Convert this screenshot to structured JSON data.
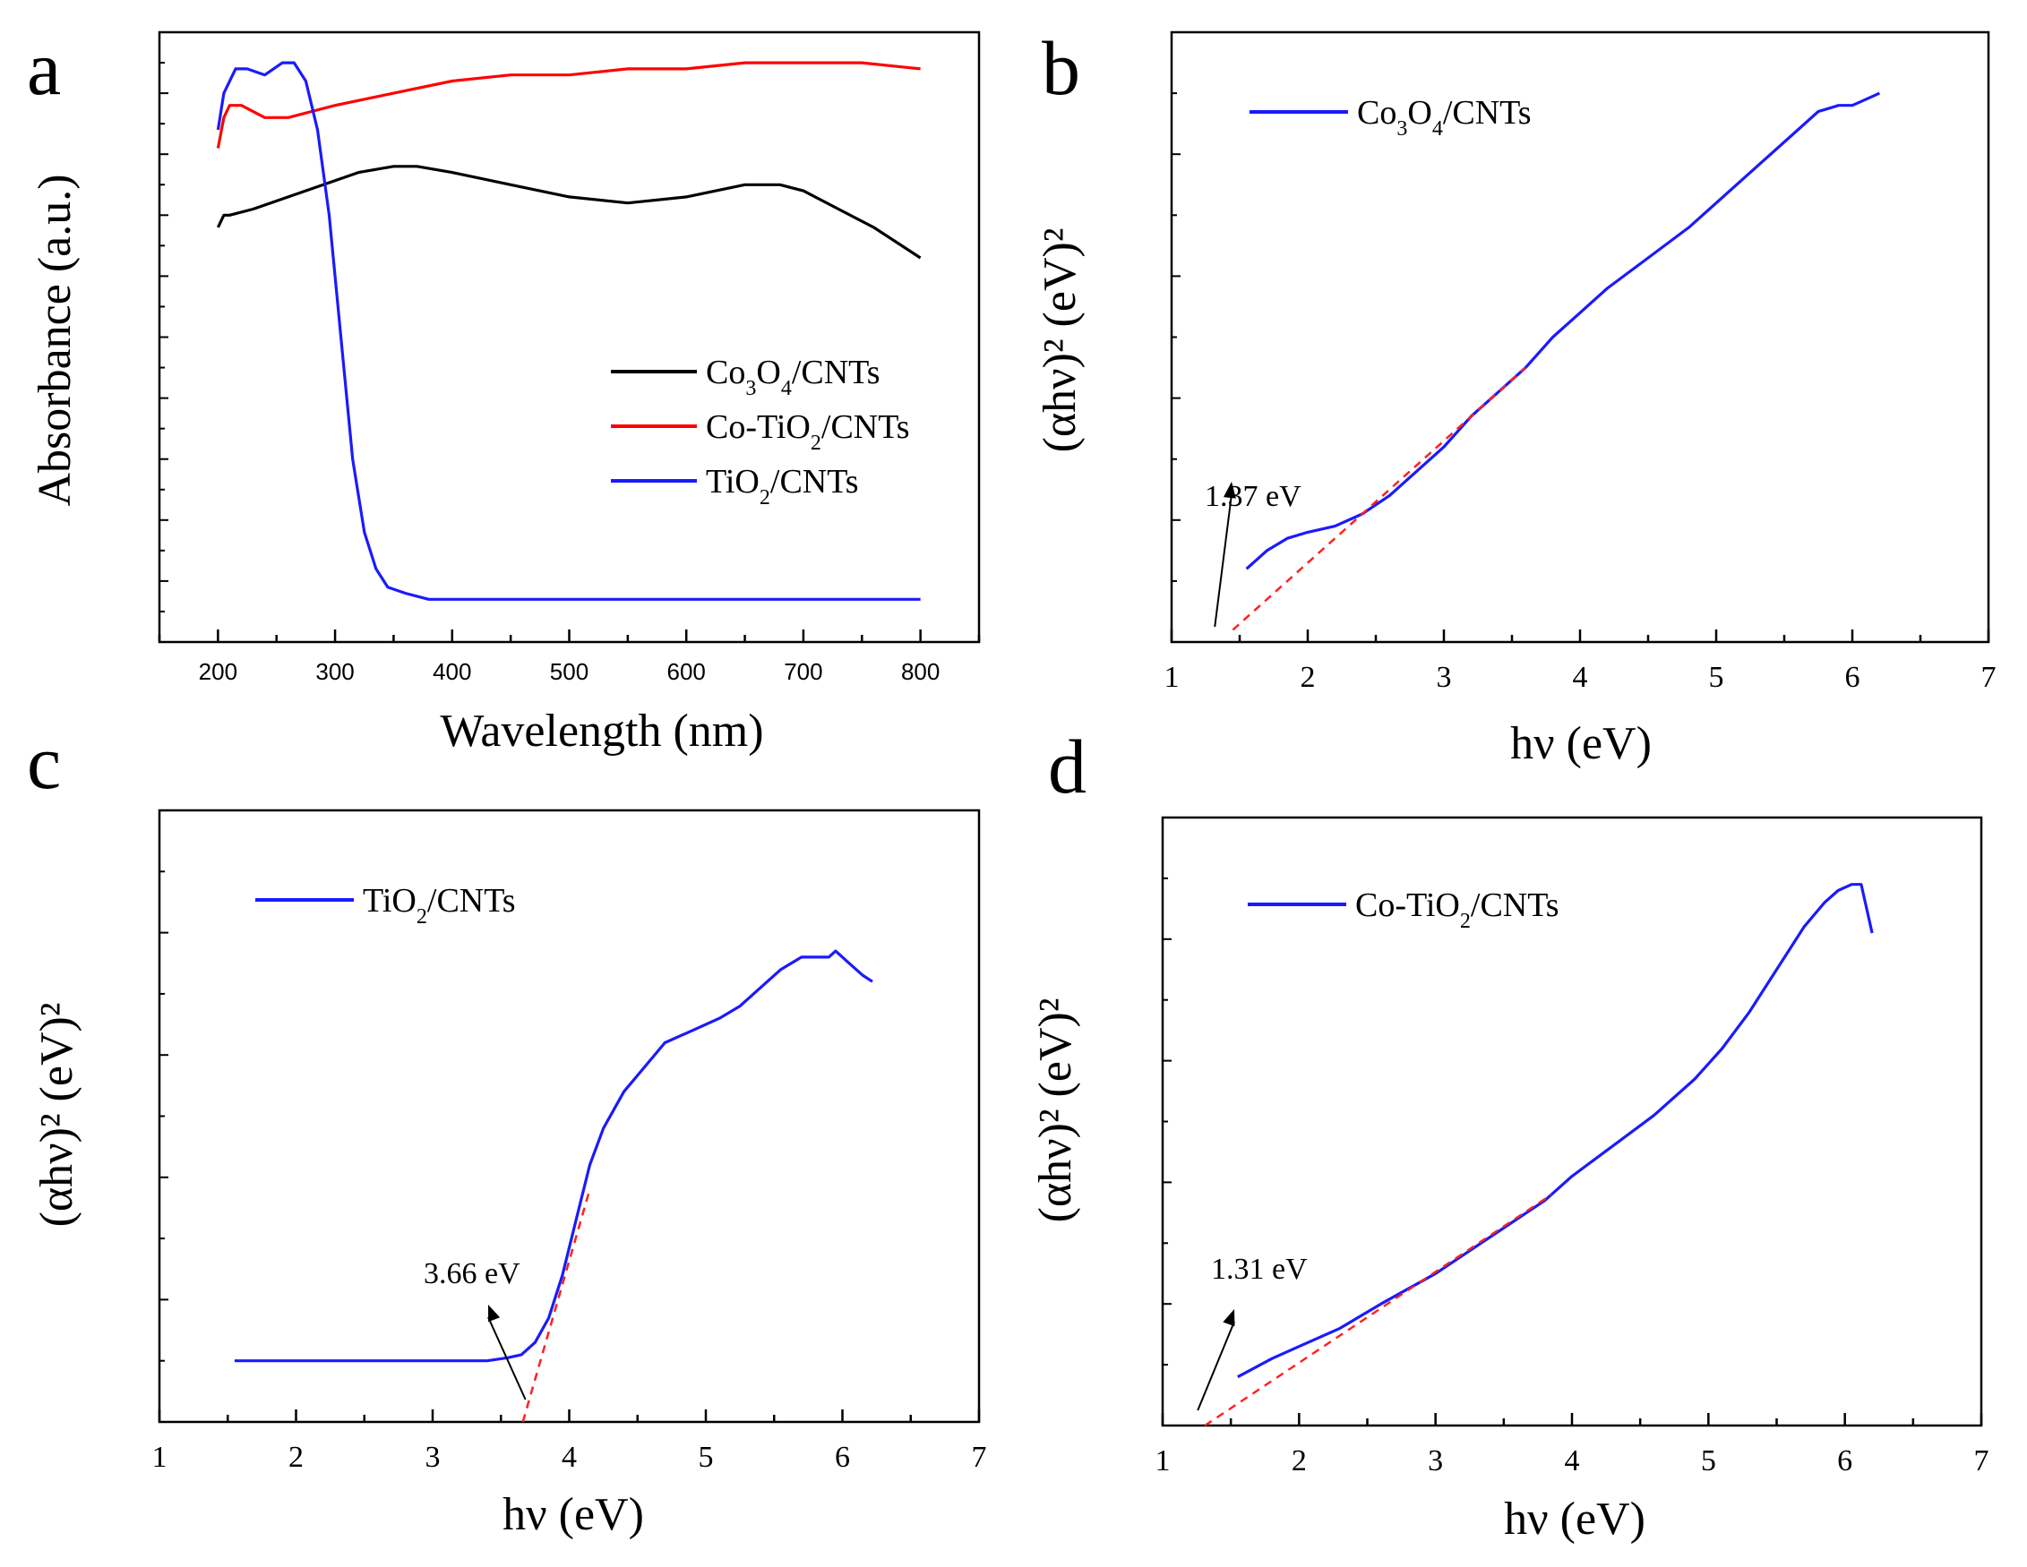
{
  "colors": {
    "black": "#000000",
    "red": "#ff0000",
    "blue": "#1a1aff",
    "fit_line": "#ff2020"
  },
  "chart_data": [
    {
      "panel": "a",
      "type": "line",
      "title": "",
      "xlabel": "Wavelength (nm)",
      "ylabel": "Absorbance (a.u.)",
      "xlim": [
        150,
        850
      ],
      "ylim": [
        0,
        1
      ],
      "xticks": [
        "200",
        "300",
        "400",
        "500",
        "600",
        "700",
        "800"
      ],
      "y_ticks_labeled": false,
      "grid": false,
      "legend_position": "center-right",
      "series": [
        {
          "name": "Co3O4/CNTs",
          "legend_parts": [
            [
              "Co",
              ""
            ],
            [
              "3",
              "sub"
            ],
            [
              "O",
              ""
            ],
            [
              "4",
              "sub"
            ],
            [
              "/CNTs",
              ""
            ]
          ],
          "color": "#000000",
          "x": [
            200,
            205,
            210,
            230,
            260,
            290,
            320,
            350,
            370,
            400,
            450,
            500,
            550,
            600,
            650,
            680,
            700,
            730,
            760,
            800
          ],
          "y": [
            0.68,
            0.7,
            0.7,
            0.71,
            0.73,
            0.75,
            0.77,
            0.78,
            0.78,
            0.77,
            0.75,
            0.73,
            0.72,
            0.73,
            0.75,
            0.75,
            0.74,
            0.71,
            0.68,
            0.63
          ]
        },
        {
          "name": "Co-TiO2/CNTs",
          "legend_parts": [
            [
              "Co-TiO",
              ""
            ],
            [
              "2",
              "sub"
            ],
            [
              "/CNTs",
              ""
            ]
          ],
          "color": "#ff0000",
          "x": [
            200,
            205,
            210,
            220,
            240,
            260,
            280,
            300,
            350,
            400,
            450,
            500,
            550,
            600,
            650,
            700,
            750,
            800
          ],
          "y": [
            0.81,
            0.86,
            0.88,
            0.88,
            0.86,
            0.86,
            0.87,
            0.88,
            0.9,
            0.92,
            0.93,
            0.93,
            0.94,
            0.94,
            0.95,
            0.95,
            0.95,
            0.94
          ]
        },
        {
          "name": "TiO2/CNTs",
          "legend_parts": [
            [
              "TiO",
              ""
            ],
            [
              "2",
              "sub"
            ],
            [
              "/CNTs",
              ""
            ]
          ],
          "color": "#1a1aff",
          "x": [
            200,
            205,
            215,
            225,
            240,
            255,
            265,
            275,
            285,
            295,
            305,
            315,
            325,
            335,
            345,
            360,
            380,
            400,
            450,
            500,
            600,
            700,
            800
          ],
          "y": [
            0.84,
            0.9,
            0.94,
            0.94,
            0.93,
            0.95,
            0.95,
            0.92,
            0.84,
            0.7,
            0.5,
            0.3,
            0.18,
            0.12,
            0.09,
            0.08,
            0.07,
            0.07,
            0.07,
            0.07,
            0.07,
            0.07,
            0.07
          ]
        }
      ]
    },
    {
      "panel": "b",
      "type": "line",
      "title": "",
      "xlabel": "hν (eV)",
      "ylabel": "(αhν)² (eV)²",
      "xlim": [
        1,
        7
      ],
      "ylim": [
        0,
        1
      ],
      "xticks": [
        "1",
        "2",
        "3",
        "4",
        "5",
        "6",
        "7"
      ],
      "y_ticks_labeled": false,
      "grid": false,
      "legend_position": "top-left",
      "series": [
        {
          "name": "Co3O4/CNTs",
          "legend_parts": [
            [
              "Co",
              ""
            ],
            [
              "3",
              "sub"
            ],
            [
              "O",
              ""
            ],
            [
              "4",
              "sub"
            ],
            [
              "/CNTs",
              ""
            ]
          ],
          "color": "#1a1aff",
          "x": [
            1.55,
            1.7,
            1.85,
            2.0,
            2.2,
            2.4,
            2.6,
            2.8,
            3.0,
            3.2,
            3.4,
            3.6,
            3.8,
            4.0,
            4.2,
            4.5,
            4.8,
            5.0,
            5.3,
            5.6,
            5.75,
            5.9,
            6.0,
            6.1,
            6.2
          ],
          "y": [
            0.12,
            0.15,
            0.17,
            0.18,
            0.19,
            0.21,
            0.24,
            0.28,
            0.32,
            0.37,
            0.41,
            0.45,
            0.5,
            0.54,
            0.58,
            0.63,
            0.68,
            0.72,
            0.78,
            0.84,
            0.87,
            0.88,
            0.88,
            0.89,
            0.9
          ]
        },
        {
          "name": "Tauc fit",
          "color": "#ff2020",
          "dashed": true,
          "x": [
            1.45,
            3.6
          ],
          "y": [
            0.02,
            0.45
          ]
        }
      ],
      "annotation": {
        "text": "1.37 eV",
        "x": 1.37
      }
    },
    {
      "panel": "c",
      "type": "line",
      "title": "",
      "xlabel": "hν (eV)",
      "ylabel": "(αhν)² (eV)²",
      "xlim": [
        1,
        7
      ],
      "ylim": [
        0,
        1
      ],
      "xticks": [
        "1",
        "2",
        "3",
        "4",
        "5",
        "6",
        "7"
      ],
      "y_ticks_labeled": false,
      "grid": false,
      "legend_position": "top-left",
      "series": [
        {
          "name": "TiO2/CNTs",
          "legend_parts": [
            [
              "TiO",
              ""
            ],
            [
              "2",
              "sub"
            ],
            [
              "/CNTs",
              ""
            ]
          ],
          "color": "#1a1aff",
          "x": [
            1.55,
            2.0,
            2.5,
            3.0,
            3.4,
            3.55,
            3.65,
            3.75,
            3.85,
            3.95,
            4.05,
            4.15,
            4.25,
            4.4,
            4.55,
            4.7,
            4.9,
            5.1,
            5.25,
            5.4,
            5.55,
            5.7,
            5.8,
            5.9,
            5.95,
            6.05,
            6.15,
            6.22
          ],
          "y": [
            0.1,
            0.1,
            0.1,
            0.1,
            0.1,
            0.105,
            0.11,
            0.13,
            0.17,
            0.24,
            0.33,
            0.42,
            0.48,
            0.54,
            0.58,
            0.62,
            0.64,
            0.66,
            0.68,
            0.71,
            0.74,
            0.76,
            0.76,
            0.76,
            0.77,
            0.75,
            0.73,
            0.72
          ]
        },
        {
          "name": "Tauc fit",
          "color": "#ff2020",
          "dashed": true,
          "x": [
            3.66,
            4.15
          ],
          "y": [
            0.0,
            0.38
          ]
        }
      ],
      "annotation": {
        "text": "3.66 eV",
        "x": 3.66
      }
    },
    {
      "panel": "d",
      "type": "line",
      "title": "",
      "xlabel": "hν (eV)",
      "ylabel": "(αhν)² (eV)²",
      "xlim": [
        1,
        7
      ],
      "ylim": [
        0,
        1
      ],
      "xticks": [
        "1",
        "2",
        "3",
        "4",
        "5",
        "6",
        "7"
      ],
      "y_ticks_labeled": false,
      "grid": false,
      "legend_position": "top-left",
      "series": [
        {
          "name": "Co-TiO2/CNTs",
          "legend_parts": [
            [
              "Co-TiO",
              ""
            ],
            [
              "2",
              "sub"
            ],
            [
              "/CNTs",
              ""
            ]
          ],
          "color": "#1a1aff",
          "x": [
            1.55,
            1.8,
            2.0,
            2.3,
            2.6,
            3.0,
            3.4,
            3.8,
            4.0,
            4.3,
            4.6,
            4.9,
            5.1,
            5.3,
            5.5,
            5.7,
            5.85,
            5.95,
            6.05,
            6.12,
            6.2
          ],
          "y": [
            0.08,
            0.11,
            0.13,
            0.16,
            0.2,
            0.25,
            0.31,
            0.37,
            0.41,
            0.46,
            0.51,
            0.57,
            0.62,
            0.68,
            0.75,
            0.82,
            0.86,
            0.88,
            0.89,
            0.89,
            0.81
          ]
        },
        {
          "name": "Tauc fit",
          "color": "#ff2020",
          "dashed": true,
          "x": [
            1.31,
            3.85
          ],
          "y": [
            0.0,
            0.38
          ]
        }
      ],
      "annotation": {
        "text": "1.31 eV",
        "x": 1.31
      }
    }
  ]
}
